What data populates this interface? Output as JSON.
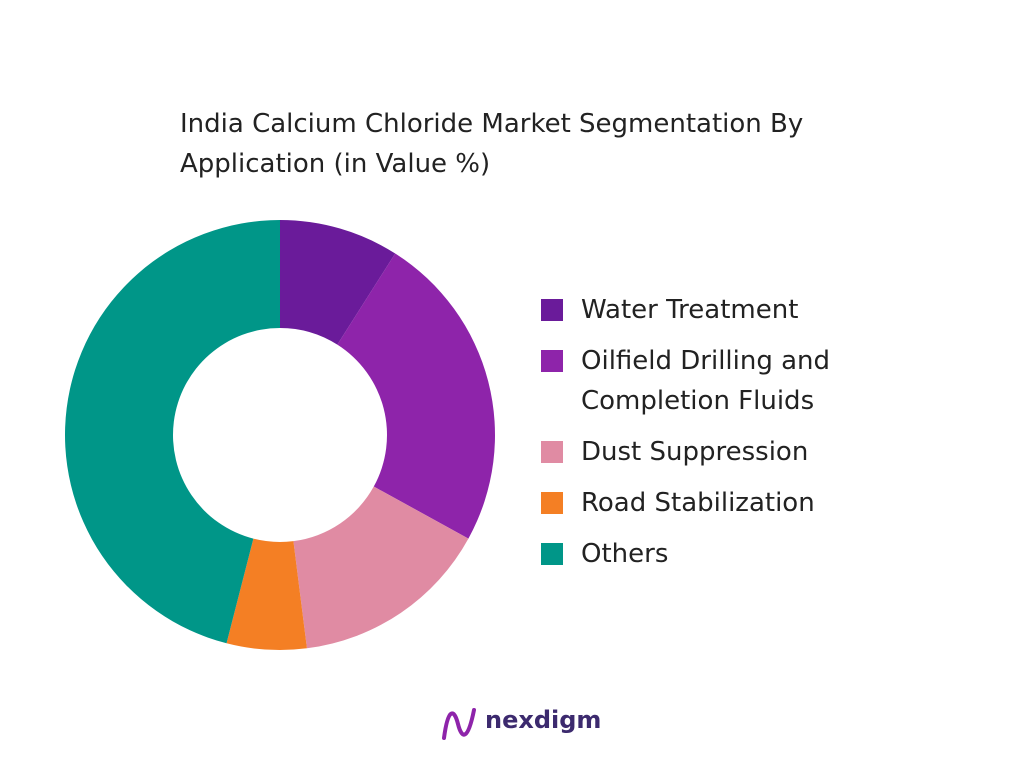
{
  "chart_data": {
    "type": "donut",
    "title": "India Calcium Chloride Market Segmentation By Application (in Value %)",
    "categories": [
      "Water Treatment",
      "Oilfield Drilling and Completion Fluids",
      "Dust Suppression",
      "Road Stabilization",
      "Others"
    ],
    "values": [
      9,
      24,
      15,
      6,
      46
    ],
    "colors": [
      "#6a1b9a",
      "#8e24aa",
      "#e08ba3",
      "#f47f24",
      "#009688"
    ],
    "legend": "right"
  },
  "brand": "nexdigm"
}
